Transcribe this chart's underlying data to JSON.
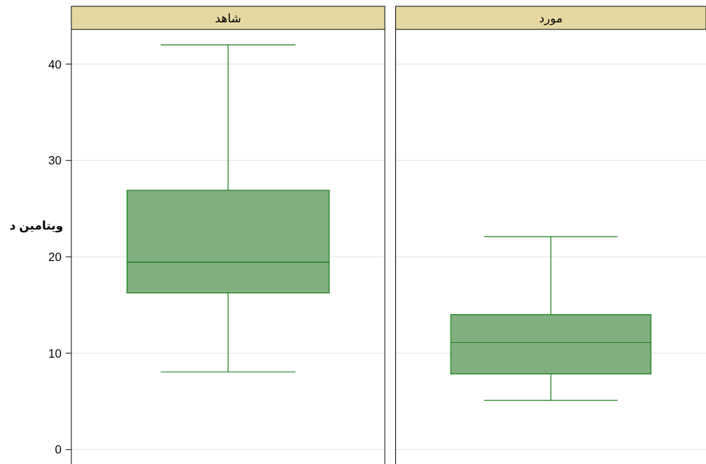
{
  "chart_data": {
    "type": "box",
    "ylabel": "ويتامين د",
    "categories": [
      "شاهد",
      "مورد"
    ],
    "ylim": [
      -1.5,
      43.6
    ],
    "yticks": [
      0,
      10,
      20,
      30,
      40
    ],
    "grid": "y",
    "color": "#80b080",
    "boxes": [
      {
        "low": 8.05,
        "q1": 16.25,
        "median": 19.45,
        "q3": 26.9,
        "high": 42.0
      },
      {
        "low": 5.1,
        "q1": 7.85,
        "median": 11.1,
        "q3": 14.0,
        "high": 22.1
      }
    ]
  }
}
